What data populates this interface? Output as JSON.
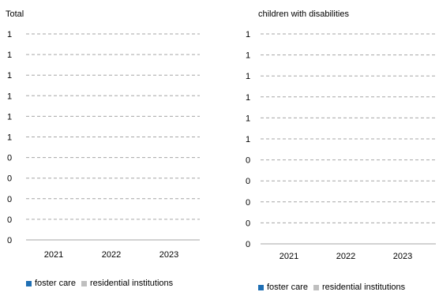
{
  "chart_data": [
    {
      "type": "bar",
      "title": "Total",
      "categories": [
        "2021",
        "2022",
        "2023"
      ],
      "series": [
        {
          "name": "foster care",
          "values": [
            0,
            0,
            0
          ],
          "color": "#1f6fb4"
        },
        {
          "name": "residential institutions",
          "values": [
            0,
            0,
            0
          ],
          "color": "#bfbfbf"
        }
      ],
      "ytick_labels": [
        "0",
        "0",
        "0",
        "0",
        "0",
        "1",
        "1",
        "1",
        "1",
        "1",
        "1"
      ],
      "grid": true,
      "legend_position": "bottom"
    },
    {
      "type": "bar",
      "title": "children with disabilities",
      "categories": [
        "2021",
        "2022",
        "2023"
      ],
      "series": [
        {
          "name": "foster care",
          "values": [
            0,
            0,
            0
          ],
          "color": "#1f6fb4"
        },
        {
          "name": "residential institutions",
          "values": [
            0,
            0,
            0
          ],
          "color": "#bfbfbf"
        }
      ],
      "ytick_labels": [
        "0",
        "0",
        "0",
        "0",
        "0",
        "1",
        "1",
        "1",
        "1",
        "1",
        "1"
      ],
      "grid": true,
      "legend_position": "bottom"
    }
  ]
}
